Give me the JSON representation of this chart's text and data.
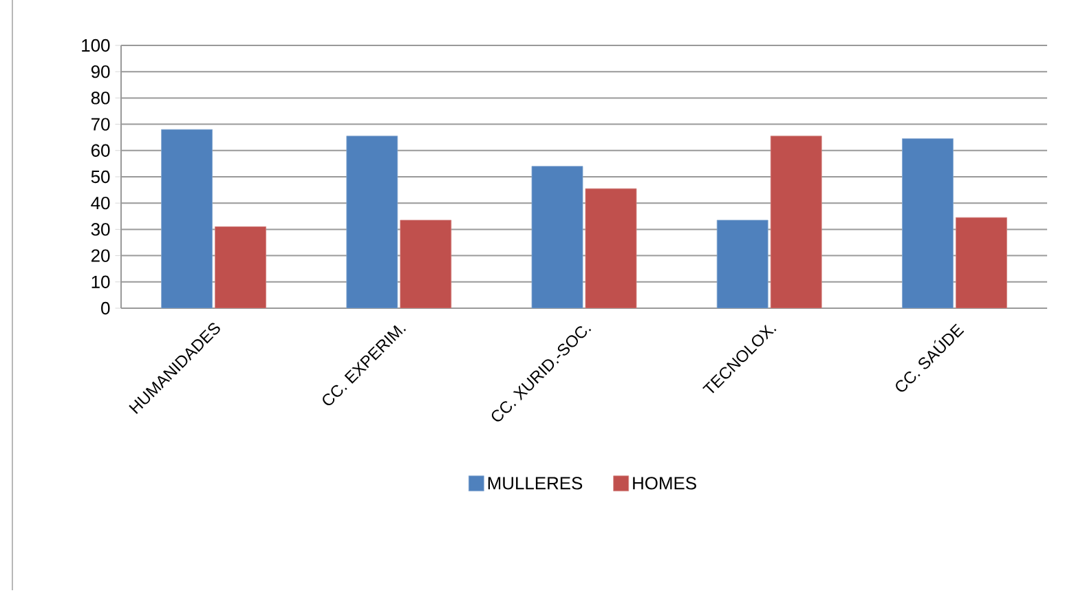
{
  "chart_data": {
    "type": "bar",
    "categories": [
      "HUMANIDADES",
      "CC. EXPERIM.",
      "CC. XURID.-SOC.",
      "TECNOLOX.",
      "CC. SAÚDE"
    ],
    "series": [
      {
        "name": "MULLERES",
        "color": "#4f81bd",
        "values": [
          68,
          65.5,
          54,
          33.5,
          64.5
        ]
      },
      {
        "name": "HOMES",
        "color": "#c0504d",
        "values": [
          31,
          33.5,
          45.5,
          65.5,
          34.5
        ]
      }
    ],
    "ylim": [
      0,
      100
    ],
    "yticks": [
      0,
      10,
      20,
      30,
      40,
      50,
      60,
      70,
      80,
      90,
      100
    ],
    "grid": "y",
    "legend": "bottom"
  }
}
